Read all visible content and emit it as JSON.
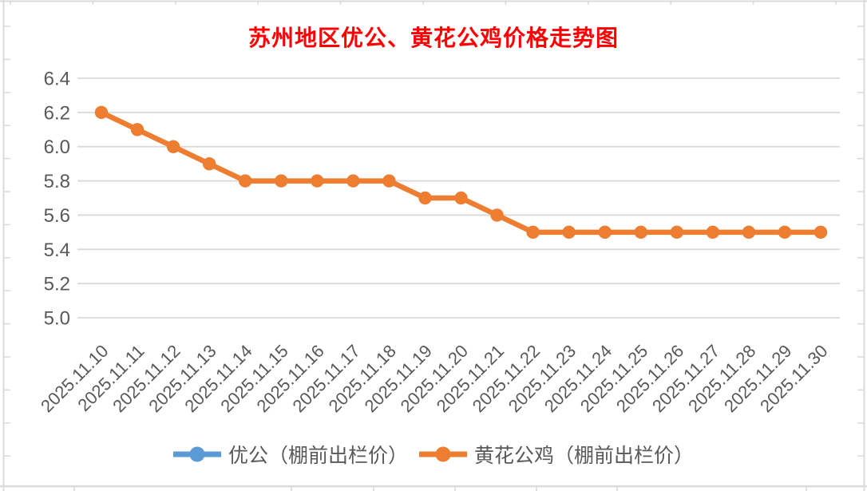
{
  "title": "苏州地区优公、黄花公鸡价格走势图",
  "colors": {
    "title": "#FF0000",
    "axis_text": "#595959",
    "legend_text": "#595959",
    "gridline": "#D9D9D9",
    "artifact": "#DBDBDB",
    "background": "#FFFFFF",
    "series_yougong_blue": "#5B9BD5",
    "series_huanghua_orange": "#ED7D31"
  },
  "chart_data": {
    "type": "line",
    "title": "苏州地区优公、黄花公鸡价格走势图",
    "categories": [
      "2025.11.10",
      "2025.11.11",
      "2025.11.12",
      "2025.11.13",
      "2025.11.14",
      "2025.11.15",
      "2025.11.16",
      "2025.11.17",
      "2025.11.18",
      "2025.11.19",
      "2025.11.20",
      "2025.11.21",
      "2025.11.22",
      "2025.11.23",
      "2025.11.24",
      "2025.11.25",
      "2025.11.26",
      "2025.11.27",
      "2025.11.28",
      "2025.11.29",
      "2025.11.30"
    ],
    "series": [
      {
        "name": "优公（棚前出栏价）",
        "color": "#5B9BD5",
        "plotted": false,
        "values": []
      },
      {
        "name": "黄花公鸡（棚前出栏价）",
        "color": "#ED7D31",
        "plotted": true,
        "values": [
          6.2,
          6.1,
          6.0,
          5.9,
          5.8,
          5.8,
          5.8,
          5.8,
          5.8,
          5.7,
          5.7,
          5.6,
          5.5,
          5.5,
          5.5,
          5.5,
          5.5,
          5.5,
          5.5,
          5.5,
          5.5
        ]
      }
    ],
    "ylim": [
      5.0,
      6.4
    ],
    "yticks": [
      5.0,
      5.2,
      5.4,
      5.6,
      5.8,
      6.0,
      6.2,
      6.4
    ],
    "ytick_labels": [
      "5.0",
      "5.2",
      "5.4",
      "5.6",
      "5.8",
      "6.0",
      "6.2",
      "6.4"
    ],
    "grid": true,
    "legend_position": "bottom",
    "x_axis_label_rotation_deg": 45
  },
  "legend": {
    "items": [
      {
        "label": "优公（棚前出栏价）",
        "color": "#5B9BD5"
      },
      {
        "label": "黄花公鸡（棚前出栏价）",
        "color": "#ED7D31"
      }
    ]
  }
}
